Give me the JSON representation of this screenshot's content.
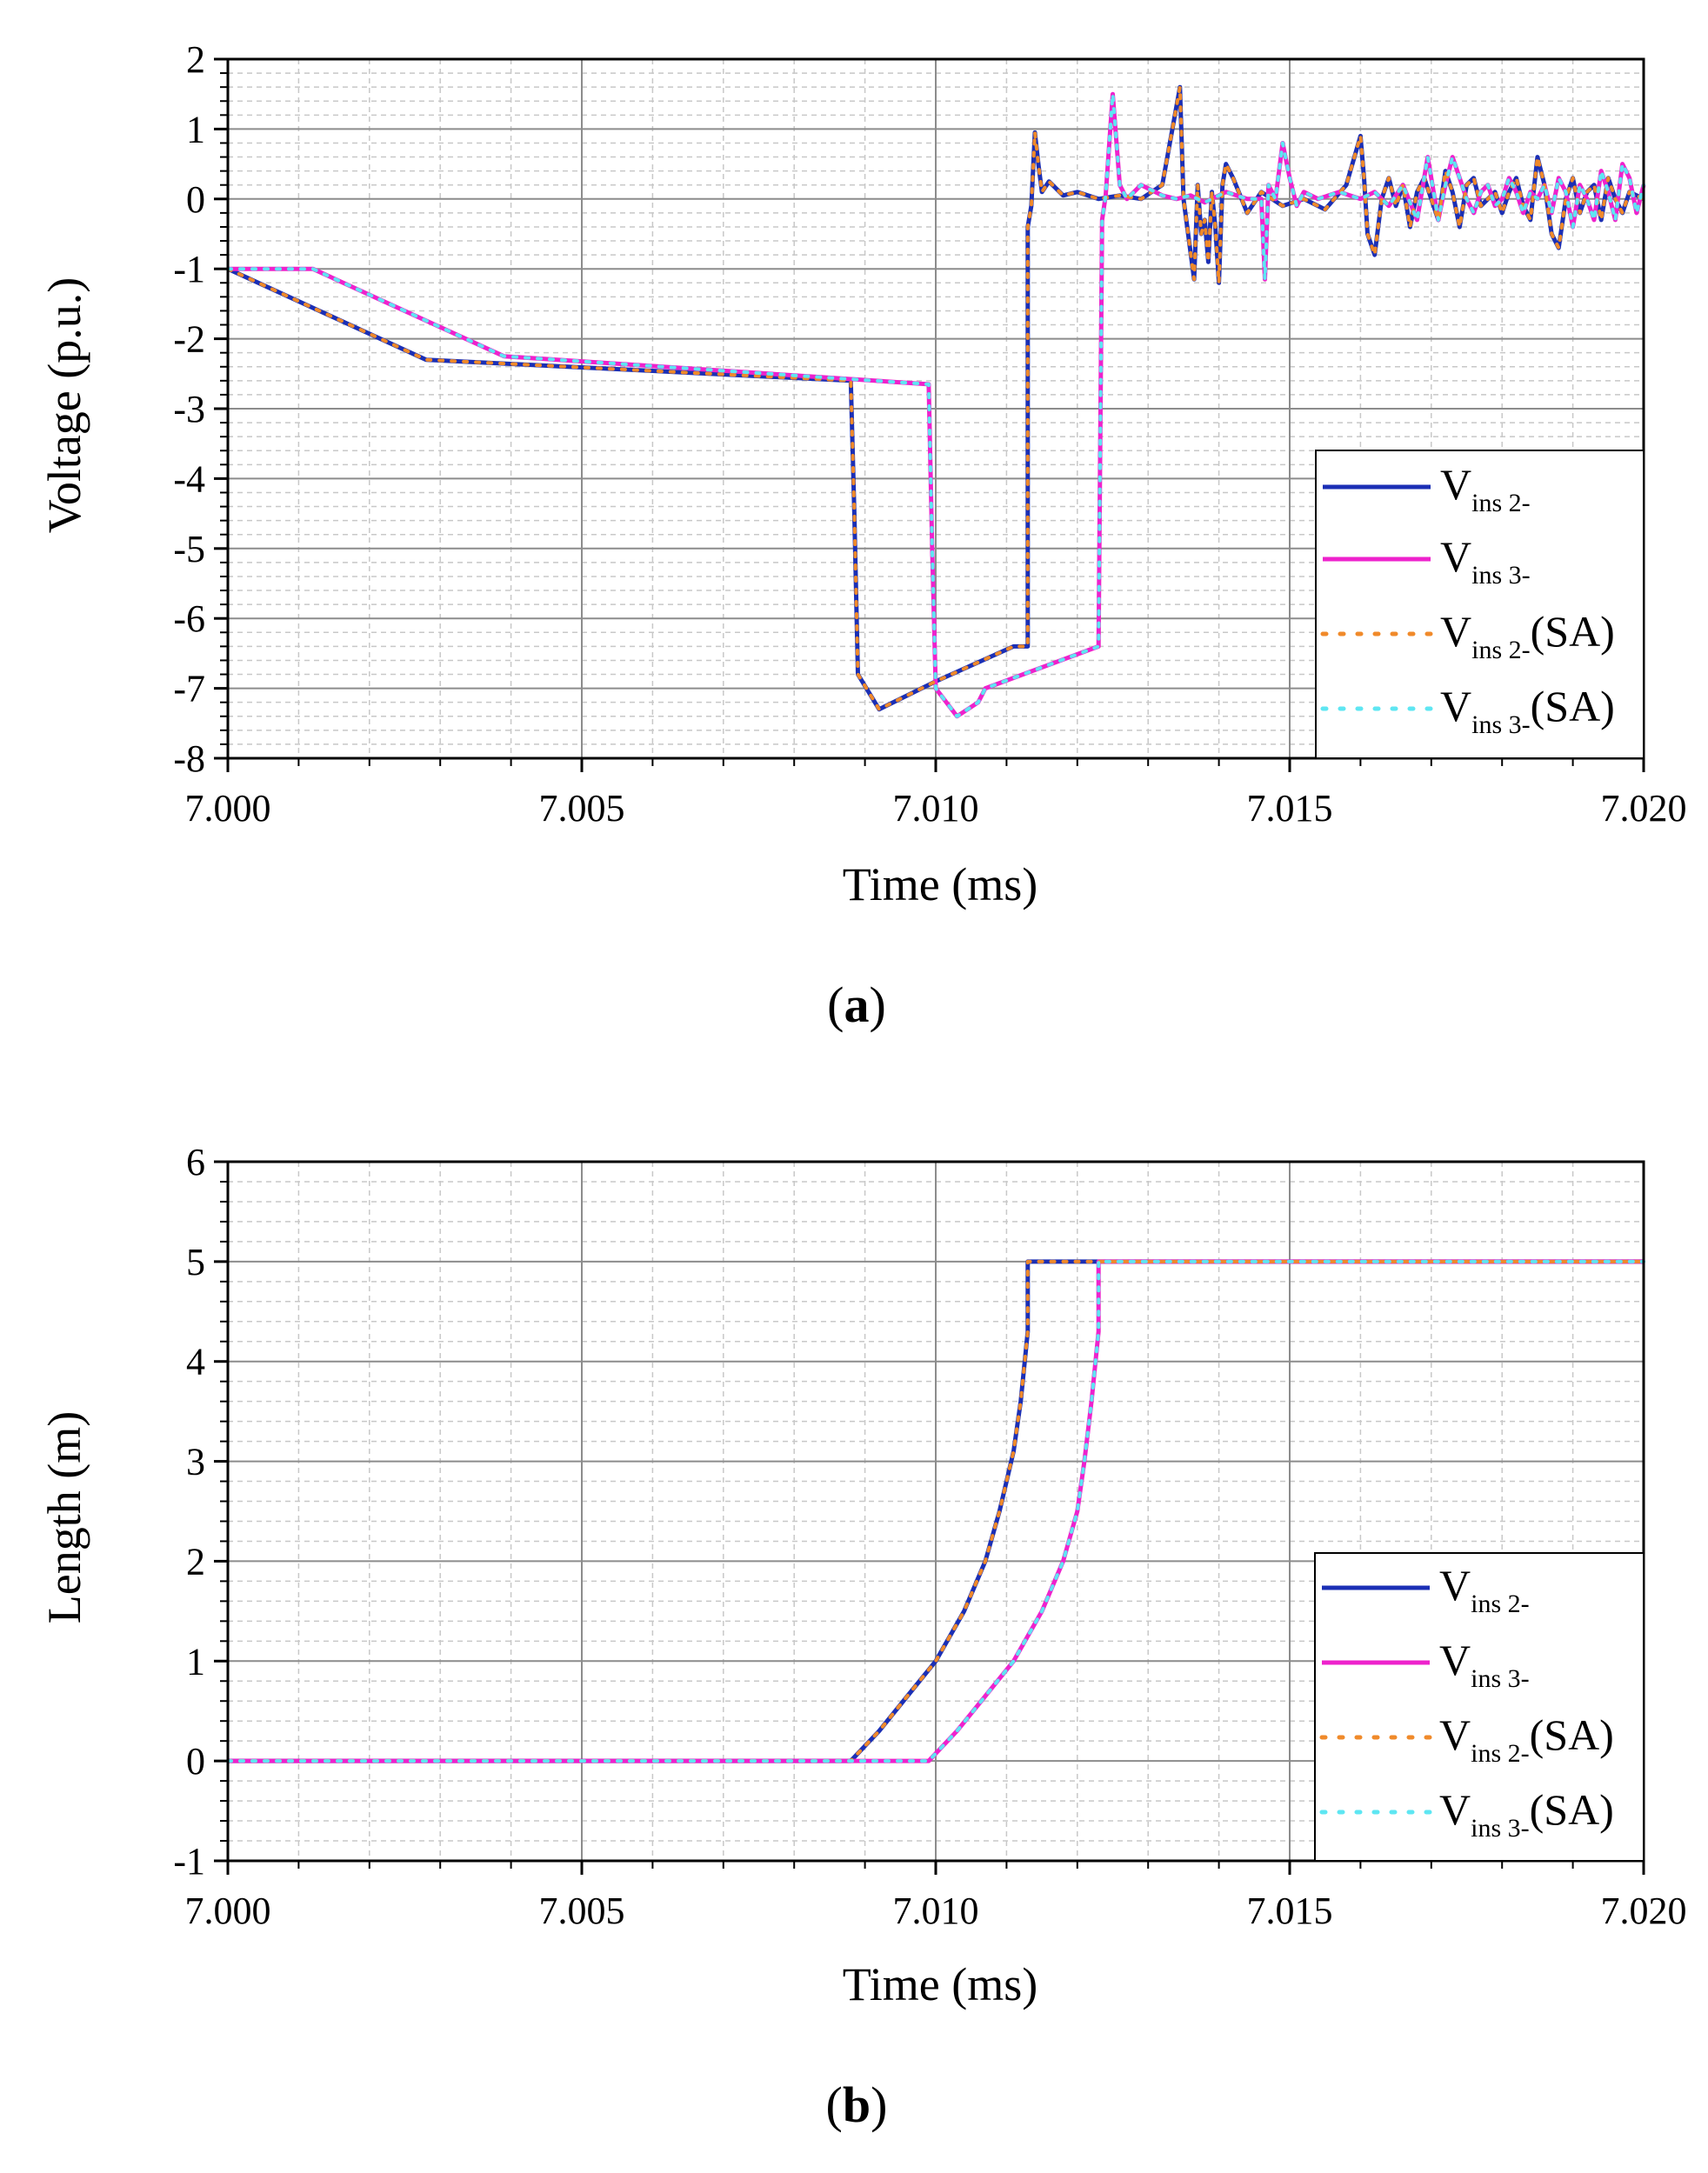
{
  "chart_data": [
    {
      "type": "line",
      "caption": "a",
      "title": "",
      "xlabel": "Time (ms)",
      "ylabel": "Voltage (p.u.)",
      "xlim": [
        7.0,
        7.02
      ],
      "ylim": [
        -8,
        2
      ],
      "xticks": [
        7.0,
        7.005,
        7.01,
        7.015,
        7.02
      ],
      "xtick_labels": [
        "7.000",
        "7.005",
        "7.010",
        "7.015",
        "7.020"
      ],
      "yticks": [
        -8,
        -7,
        -6,
        -5,
        -4,
        -3,
        -2,
        -1,
        0,
        1,
        2
      ],
      "ytick_labels": [
        "-8",
        "-7",
        "-6",
        "-5",
        "-4",
        "-3",
        "-2",
        "-1",
        "0",
        "1",
        "2"
      ],
      "grid": true,
      "legend": "bottom-right",
      "series": [
        {
          "name": "V_ins 2-",
          "label_main": "V",
          "label_sub": "ins 2-",
          "label_suffix": "",
          "color": "#1b2fb5",
          "style": "solid",
          "x": [
            7.0,
            7.0028,
            7.0088,
            7.00885,
            7.0089,
            7.0092,
            7.01,
            7.0111,
            7.0113,
            7.0113,
            7.01135,
            7.0114,
            7.01145,
            7.0115,
            7.0116,
            7.0118,
            7.012,
            7.0123,
            7.0126,
            7.0129,
            7.0132,
            7.01345,
            7.0135,
            7.01365,
            7.0137,
            7.01375,
            7.0138,
            7.01385,
            7.0139,
            7.01395,
            7.014,
            7.01405,
            7.0141,
            7.0142,
            7.0144,
            7.0146,
            7.0149,
            7.0152,
            7.0155,
            7.0158,
            7.016,
            7.01605,
            7.0161,
            7.0162,
            7.0163,
            7.0164,
            7.0165,
            7.0166,
            7.0167,
            7.0168,
            7.0169,
            7.017,
            7.0171,
            7.0172,
            7.0173,
            7.0174,
            7.0175,
            7.0176,
            7.0177,
            7.0178,
            7.0179,
            7.018,
            7.0181,
            7.0182,
            7.0183,
            7.0184,
            7.0185,
            7.0186,
            7.0187,
            7.0188,
            7.0189,
            7.019,
            7.0191,
            7.0192,
            7.0193,
            7.0194,
            7.0195,
            7.0196,
            7.0197,
            7.0198,
            7.0199,
            7.02
          ],
          "y": [
            -1.0,
            -2.3,
            -2.6,
            -4.5,
            -6.8,
            -7.3,
            -6.9,
            -6.4,
            -6.4,
            -0.4,
            -0.1,
            0.95,
            0.5,
            0.1,
            0.25,
            0.05,
            0.1,
            0.0,
            0.05,
            0.0,
            0.2,
            1.6,
            0.0,
            -1.15,
            0.2,
            -0.5,
            -0.3,
            -0.9,
            0.1,
            -0.4,
            -1.2,
            0.2,
            0.5,
            0.3,
            -0.2,
            0.1,
            -0.1,
            0.0,
            -0.15,
            0.2,
            0.9,
            0.3,
            -0.5,
            -0.8,
            0.0,
            0.3,
            -0.1,
            0.2,
            -0.4,
            0.1,
            0.3,
            0.0,
            -0.3,
            0.4,
            0.1,
            -0.4,
            0.2,
            0.3,
            -0.1,
            0.0,
            0.1,
            -0.2,
            0.1,
            0.3,
            -0.1,
            -0.3,
            0.6,
            0.2,
            -0.5,
            -0.7,
            0.0,
            0.3,
            -0.2,
            0.1,
            0.2,
            -0.3,
            0.3,
            0.0,
            -0.2,
            0.1,
            0.05,
            0.0
          ]
        },
        {
          "name": "V_ins 3-",
          "label_main": "V",
          "label_sub": "ins 3-",
          "label_suffix": "",
          "color": "#ee22cc",
          "style": "solid",
          "x": [
            7.0,
            7.0012,
            7.0039,
            7.0099,
            7.00995,
            7.01,
            7.0103,
            7.0106,
            7.0107,
            7.0123,
            7.01235,
            7.0124,
            7.0125,
            7.0126,
            7.0127,
            7.0129,
            7.0132,
            7.0134,
            7.0136,
            7.0138,
            7.0141,
            7.0144,
            7.0146,
            7.01465,
            7.0147,
            7.0148,
            7.0149,
            7.015,
            7.0151,
            7.0152,
            7.0154,
            7.0157,
            7.016,
            7.0162,
            7.0164,
            7.0166,
            7.0168,
            7.01695,
            7.0171,
            7.0172,
            7.0173,
            7.0174,
            7.0175,
            7.0176,
            7.0177,
            7.0178,
            7.0179,
            7.018,
            7.0181,
            7.0182,
            7.0183,
            7.0184,
            7.0185,
            7.0186,
            7.0187,
            7.0188,
            7.0189,
            7.019,
            7.0191,
            7.0192,
            7.0193,
            7.0194,
            7.0195,
            7.0196,
            7.0197,
            7.0198,
            7.0199,
            7.02
          ],
          "y": [
            -1.0,
            -1.0,
            -2.25,
            -2.65,
            -5.0,
            -7.0,
            -7.4,
            -7.2,
            -7.0,
            -6.4,
            -0.3,
            0.05,
            1.5,
            0.2,
            0.0,
            0.2,
            0.05,
            0.0,
            0.05,
            -0.05,
            0.1,
            0.0,
            0.0,
            -1.15,
            0.2,
            0.0,
            0.8,
            0.3,
            -0.1,
            0.1,
            0.0,
            0.1,
            0.0,
            0.1,
            -0.1,
            0.2,
            -0.3,
            0.6,
            -0.3,
            0.2,
            0.6,
            0.3,
            0.0,
            -0.2,
            0.1,
            0.2,
            -0.1,
            0.0,
            0.3,
            0.1,
            -0.2,
            0.1,
            0.0,
            0.2,
            -0.2,
            0.3,
            0.1,
            -0.4,
            0.2,
            0.0,
            -0.3,
            0.4,
            0.1,
            -0.3,
            0.5,
            0.3,
            -0.2,
            0.2
          ]
        },
        {
          "name": "V_ins 2-(SA)",
          "label_main": "V",
          "label_sub": "ins 2-",
          "label_suffix": "(SA)",
          "color": "#f08a2a",
          "style": "dotted",
          "ref": "V_ins 2-"
        },
        {
          "name": "V_ins 3-(SA)",
          "label_main": "V",
          "label_sub": "ins 3-",
          "label_suffix": "(SA)",
          "color": "#5ee6f2",
          "style": "dotted",
          "ref": "V_ins 3-"
        }
      ]
    },
    {
      "type": "line",
      "caption": "b",
      "title": "",
      "xlabel": "Time (ms)",
      "ylabel": "Length (m)",
      "xlim": [
        7.0,
        7.02
      ],
      "ylim": [
        -1,
        6
      ],
      "xticks": [
        7.0,
        7.005,
        7.01,
        7.015,
        7.02
      ],
      "xtick_labels": [
        "7.000",
        "7.005",
        "7.010",
        "7.015",
        "7.020"
      ],
      "yticks": [
        -1,
        0,
        1,
        2,
        3,
        4,
        5,
        6
      ],
      "ytick_labels": [
        "-1",
        "0",
        "1",
        "2",
        "3",
        "4",
        "5",
        "6"
      ],
      "grid": true,
      "legend": "bottom-right",
      "series": [
        {
          "name": "V_ins 2-",
          "label_main": "V",
          "label_sub": "ins 2-",
          "label_suffix": "",
          "color": "#1b2fb5",
          "style": "solid",
          "x": [
            7.0,
            7.0088,
            7.0092,
            7.0096,
            7.01,
            7.0104,
            7.0107,
            7.0109,
            7.0111,
            7.0112,
            7.0113,
            7.0113,
            7.02
          ],
          "y": [
            0,
            0,
            0.3,
            0.65,
            1.0,
            1.5,
            2.0,
            2.5,
            3.1,
            3.6,
            4.3,
            5.0,
            5.0
          ]
        },
        {
          "name": "V_ins 3-",
          "label_main": "V",
          "label_sub": "ins 3-",
          "label_suffix": "",
          "color": "#ee22cc",
          "style": "solid",
          "x": [
            7.0,
            7.0099,
            7.0103,
            7.0107,
            7.0111,
            7.0115,
            7.0118,
            7.012,
            7.0121,
            7.0122,
            7.0123,
            7.0123,
            7.02
          ],
          "y": [
            0,
            0,
            0.3,
            0.65,
            1.0,
            1.5,
            2.0,
            2.5,
            3.0,
            3.6,
            4.3,
            5.0,
            5.0
          ]
        },
        {
          "name": "V_ins 2-(SA)",
          "label_main": "V",
          "label_sub": "ins 2-",
          "label_suffix": "(SA)",
          "color": "#f08a2a",
          "style": "dotted",
          "ref": "V_ins 2-"
        },
        {
          "name": "V_ins 3-(SA)",
          "label_main": "V",
          "label_sub": "ins 3-",
          "label_suffix": "(SA)",
          "color": "#5ee6f2",
          "style": "dotted",
          "ref": "V_ins 3-"
        }
      ]
    }
  ]
}
